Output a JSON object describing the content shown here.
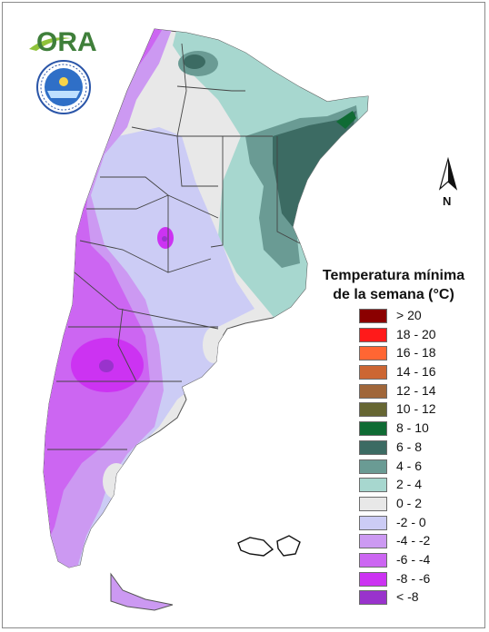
{
  "logo": {
    "text": "ORA"
  },
  "seal_logo": {
    "icon": "smn-seal-icon"
  },
  "north_arrow": {
    "label": "N",
    "icon": "north-arrow-icon"
  },
  "legend": {
    "title_line1": "Temperatura mínima",
    "title_line2": "de la semana (°C)",
    "items": [
      {
        "label": "> 20",
        "color": "#8b0000"
      },
      {
        "label": "18 - 20",
        "color": "#ff1a1a"
      },
      {
        "label": "16 - 18",
        "color": "#ff6633"
      },
      {
        "label": "14 - 16",
        "color": "#cc6633"
      },
      {
        "label": "12 - 14",
        "color": "#a0663a"
      },
      {
        "label": "10 - 12",
        "color": "#666633"
      },
      {
        "label": "8 - 10",
        "color": "#0f6b34"
      },
      {
        "label": "6 - 8",
        "color": "#3c6b63"
      },
      {
        "label": "4 - 6",
        "color": "#6a9b94"
      },
      {
        "label": "2 - 4",
        "color": "#a7d7cf"
      },
      {
        "label": "0 - 2",
        "color": "#e8e8e8"
      },
      {
        "label": "-2 - 0",
        "color": "#ccccf5"
      },
      {
        "label": "-4 - -2",
        "color": "#cc99f2"
      },
      {
        "label": "-6 - -4",
        "color": "#cc66f2"
      },
      {
        "label": "-8 - -6",
        "color": "#cc33f2"
      },
      {
        "label": "< -8",
        "color": "#9933cc"
      }
    ]
  }
}
